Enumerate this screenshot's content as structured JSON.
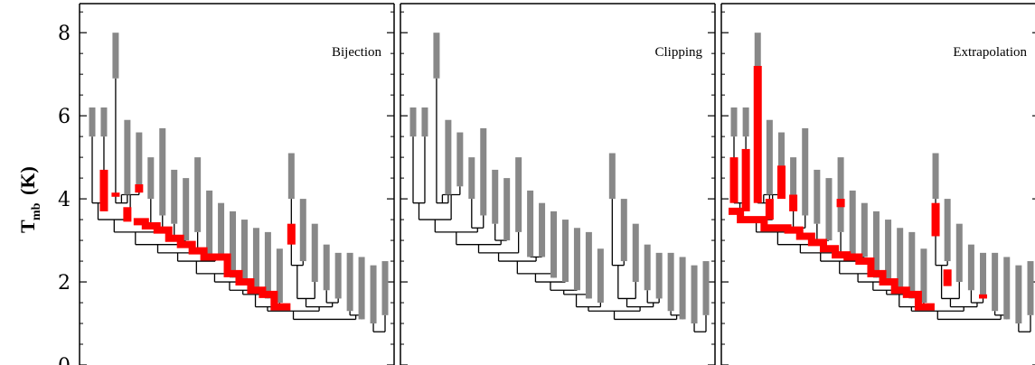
{
  "chart_data": {
    "type": "dendrogram",
    "ylabel": {
      "main": "T",
      "sub": "mb",
      "unit": "(K)"
    },
    "ylim": [
      0,
      8.7
    ],
    "yticks": [
      0,
      2,
      4,
      6,
      8
    ],
    "colors": {
      "gray": "#888888",
      "red": "#ff0000",
      "line": "#000000"
    },
    "leaves": [
      {
        "id": "L1",
        "min": 5.5,
        "max": 6.2,
        "order": 1
      },
      {
        "id": "L2",
        "min": 5.5,
        "max": 6.2,
        "order": 2
      },
      {
        "id": "L3",
        "min": 6.9,
        "max": 8.0,
        "order": 3
      },
      {
        "id": "L4",
        "min": 4.1,
        "max": 5.9,
        "order": 4
      },
      {
        "id": "L5",
        "min": 4.3,
        "max": 5.6,
        "order": 5
      },
      {
        "id": "L6",
        "min": 4.0,
        "max": 5.0,
        "order": 6
      },
      {
        "id": "L7",
        "min": 3.6,
        "max": 5.7,
        "order": 7
      },
      {
        "id": "L8",
        "min": 3.4,
        "max": 4.7,
        "order": 8
      },
      {
        "id": "L9",
        "min": 3.0,
        "max": 4.5,
        "order": 9
      },
      {
        "id": "L10",
        "min": 3.2,
        "max": 5.0,
        "order": 10
      },
      {
        "id": "L11",
        "min": 2.6,
        "max": 4.2,
        "order": 11
      },
      {
        "id": "L12",
        "min": 2.6,
        "max": 3.9,
        "order": 12
      },
      {
        "id": "L13",
        "min": 2.1,
        "max": 3.7,
        "order": 13
      },
      {
        "id": "L14",
        "min": 2.0,
        "max": 3.5,
        "order": 14
      },
      {
        "id": "L15",
        "min": 1.8,
        "max": 3.3,
        "order": 15
      },
      {
        "id": "L16",
        "min": 1.6,
        "max": 3.2,
        "order": 16
      },
      {
        "id": "L17",
        "min": 1.5,
        "max": 2.8,
        "order": 17
      },
      {
        "id": "L18",
        "min": 4.0,
        "max": 5.1,
        "order": 18
      },
      {
        "id": "L19",
        "min": 2.5,
        "max": 4.0,
        "order": 19
      },
      {
        "id": "L20",
        "min": 2.0,
        "max": 3.4,
        "order": 20
      },
      {
        "id": "L21",
        "min": 1.8,
        "max": 2.9,
        "order": 21
      },
      {
        "id": "L22",
        "min": 1.6,
        "max": 2.7,
        "order": 22
      },
      {
        "id": "L23",
        "min": 1.3,
        "max": 2.7,
        "order": 23
      },
      {
        "id": "L24",
        "min": 1.1,
        "max": 2.6,
        "order": 24
      },
      {
        "id": "L25",
        "min": 1.0,
        "max": 2.4,
        "order": 25
      },
      {
        "id": "L26",
        "min": 1.2,
        "max": 2.5,
        "order": 26
      }
    ],
    "merges": [
      {
        "id": "N1",
        "children": [
          "L1",
          "L2"
        ],
        "level": 3.9
      },
      {
        "id": "N2",
        "children": [
          "L3",
          "L4"
        ],
        "level": 3.9
      },
      {
        "id": "N3",
        "children": [
          "N2",
          "L5"
        ],
        "level": 4.1
      },
      {
        "id": "N4",
        "children": [
          "N1",
          "N3"
        ],
        "level": 3.5
      },
      {
        "id": "N5",
        "children": [
          "L6",
          "L7"
        ],
        "level": 3.3
      },
      {
        "id": "N6",
        "children": [
          "N4",
          "N5"
        ],
        "level": 3.2
      },
      {
        "id": "N7",
        "children": [
          "L8",
          "L9"
        ],
        "level": 3.0
      },
      {
        "id": "N8",
        "children": [
          "N6",
          "N7"
        ],
        "level": 2.9
      },
      {
        "id": "N9",
        "children": [
          "N8",
          "L10"
        ],
        "level": 2.7
      },
      {
        "id": "N10",
        "children": [
          "L11",
          "L12"
        ],
        "level": 2.6
      },
      {
        "id": "N11",
        "children": [
          "N9",
          "N10"
        ],
        "level": 2.5
      },
      {
        "id": "N12",
        "children": [
          "N11",
          "L13"
        ],
        "level": 2.2
      },
      {
        "id": "N13",
        "children": [
          "N12",
          "L14"
        ],
        "level": 2.0
      },
      {
        "id": "N14",
        "children": [
          "N13",
          "L15"
        ],
        "level": 1.8
      },
      {
        "id": "N15",
        "children": [
          "N14",
          "L16"
        ],
        "level": 1.7
      },
      {
        "id": "N16",
        "children": [
          "N15",
          "L17"
        ],
        "level": 1.4
      },
      {
        "id": "N17",
        "children": [
          "L18",
          "L19"
        ],
        "level": 2.4
      },
      {
        "id": "N18",
        "children": [
          "N17",
          "L20"
        ],
        "level": 1.6
      },
      {
        "id": "N19",
        "children": [
          "L21",
          "L22"
        ],
        "level": 1.5
      },
      {
        "id": "N20",
        "children": [
          "N18",
          "N19"
        ],
        "level": 1.4
      },
      {
        "id": "N21",
        "children": [
          "N16",
          "N20"
        ],
        "level": 1.3
      },
      {
        "id": "N22",
        "children": [
          "L23",
          "L24"
        ],
        "level": 1.2
      },
      {
        "id": "N23",
        "children": [
          "N21",
          "N22"
        ],
        "level": 1.1
      },
      {
        "id": "N24",
        "children": [
          "L25",
          "L26"
        ],
        "level": 0.8
      }
    ],
    "panels": [
      {
        "title": "Bijection",
        "red_path": [
          {
            "x": 5,
            "y": 3.45
          },
          {
            "x": 6,
            "y": 3.35
          },
          {
            "x": 7,
            "y": 3.25
          },
          {
            "x": 8,
            "y": 3.05
          },
          {
            "x": 9,
            "y": 2.9
          },
          {
            "x": 10,
            "y": 2.75
          },
          {
            "x": 11,
            "y": 2.6
          },
          {
            "x": 12,
            "y": 2.6
          },
          {
            "x": 13,
            "y": 2.2
          },
          {
            "x": 14,
            "y": 2.0
          },
          {
            "x": 15,
            "y": 1.8
          },
          {
            "x": 16,
            "y": 1.7
          },
          {
            "x": 17,
            "y": 1.4
          }
        ],
        "red_segments": [
          {
            "leaf": "L2",
            "y0": 3.7,
            "y1": 4.7
          },
          {
            "leaf": "L3",
            "y0": 4.05,
            "y1": 4.15
          },
          {
            "leaf": "L5",
            "y0": 4.15,
            "y1": 4.35
          },
          {
            "leaf": "L18",
            "y0": 2.9,
            "y1": 3.4
          },
          {
            "leaf": "L4",
            "y0": 3.45,
            "y1": 3.8
          }
        ]
      },
      {
        "title": "Clipping",
        "red_path": [],
        "red_segments": []
      },
      {
        "title": "Extrapolation",
        "red_path": [
          {
            "x": 1,
            "y": 3.7
          },
          {
            "x": 2,
            "y": 3.5
          },
          {
            "x": 4,
            "y": 3.3
          },
          {
            "x": 6,
            "y": 3.25
          },
          {
            "x": 7,
            "y": 3.1
          },
          {
            "x": 8,
            "y": 2.95
          },
          {
            "x": 9,
            "y": 2.8
          },
          {
            "x": 10,
            "y": 2.65
          },
          {
            "x": 11,
            "y": 2.6
          },
          {
            "x": 12,
            "y": 2.5
          },
          {
            "x": 13,
            "y": 2.2
          },
          {
            "x": 14,
            "y": 2.0
          },
          {
            "x": 15,
            "y": 1.8
          },
          {
            "x": 16,
            "y": 1.7
          },
          {
            "x": 17,
            "y": 1.4
          }
        ],
        "red_segments": [
          {
            "leaf": "L1",
            "y0": 3.9,
            "y1": 5.0
          },
          {
            "leaf": "L2",
            "y0": 3.7,
            "y1": 5.2
          },
          {
            "leaf": "L3",
            "y0": 3.9,
            "y1": 7.2
          },
          {
            "leaf": "L4",
            "y0": 3.5,
            "y1": 4.0
          },
          {
            "leaf": "L5",
            "y0": 4.0,
            "y1": 4.8
          },
          {
            "leaf": "L6",
            "y0": 3.7,
            "y1": 4.1
          },
          {
            "leaf": "L10",
            "y0": 3.8,
            "y1": 4.0
          },
          {
            "leaf": "L18",
            "y0": 3.1,
            "y1": 3.9
          },
          {
            "leaf": "L19",
            "y0": 1.9,
            "y1": 2.3
          },
          {
            "leaf": "L22",
            "y0": 1.6,
            "y1": 1.7
          }
        ]
      }
    ]
  }
}
